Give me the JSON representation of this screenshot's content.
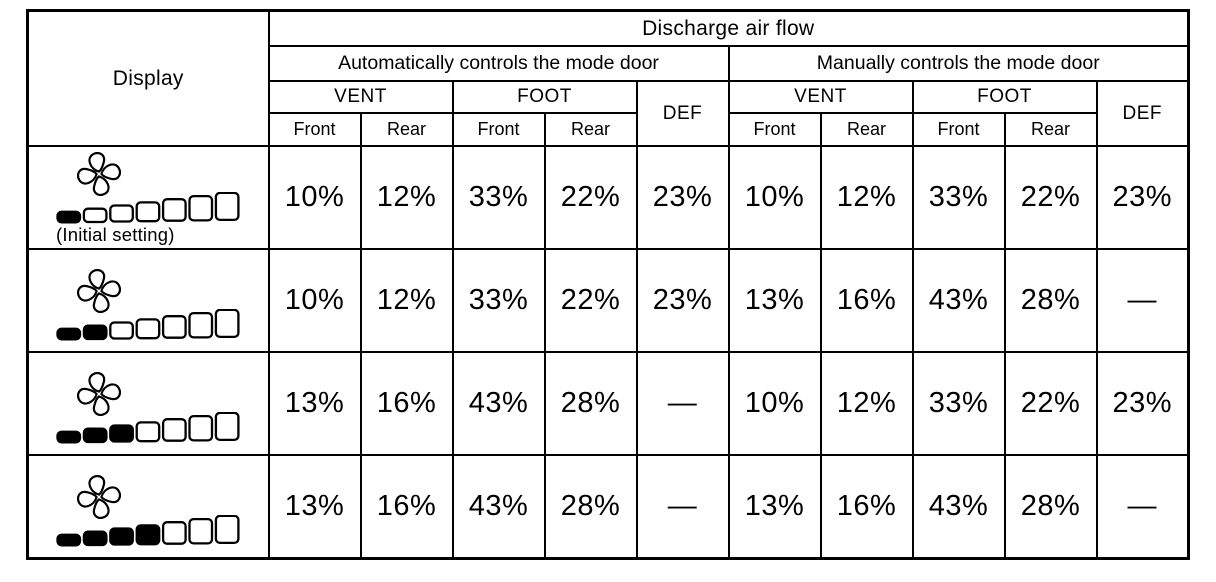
{
  "table": {
    "display_header": "Display",
    "top_header": "Discharge air flow",
    "group_headers": {
      "auto": "Automatically controls the mode door",
      "manual": "Manually controls the mode door"
    },
    "mode_headers": {
      "vent": "VENT",
      "foot": "FOOT",
      "def": "DEF"
    },
    "position_headers": {
      "front": "Front",
      "rear": "Rear"
    },
    "rows": [
      {
        "display": {
          "icon": "fan-icon",
          "segments_total": 7,
          "segments_filled": 1,
          "caption": "(Initial setting)"
        },
        "auto": {
          "vent_front": "10%",
          "vent_rear": "12%",
          "foot_front": "33%",
          "foot_rear": "22%",
          "def": "23%"
        },
        "manual": {
          "vent_front": "10%",
          "vent_rear": "12%",
          "foot_front": "33%",
          "foot_rear": "22%",
          "def": "23%"
        }
      },
      {
        "display": {
          "icon": "fan-icon",
          "segments_total": 7,
          "segments_filled": 2,
          "caption": ""
        },
        "auto": {
          "vent_front": "10%",
          "vent_rear": "12%",
          "foot_front": "33%",
          "foot_rear": "22%",
          "def": "23%"
        },
        "manual": {
          "vent_front": "13%",
          "vent_rear": "16%",
          "foot_front": "43%",
          "foot_rear": "28%",
          "def": "—"
        }
      },
      {
        "display": {
          "icon": "fan-icon",
          "segments_total": 7,
          "segments_filled": 3,
          "caption": ""
        },
        "auto": {
          "vent_front": "13%",
          "vent_rear": "16%",
          "foot_front": "43%",
          "foot_rear": "28%",
          "def": "—"
        },
        "manual": {
          "vent_front": "10%",
          "vent_rear": "12%",
          "foot_front": "33%",
          "foot_rear": "22%",
          "def": "23%"
        }
      },
      {
        "display": {
          "icon": "fan-icon",
          "segments_total": 7,
          "segments_filled": 4,
          "caption": ""
        },
        "auto": {
          "vent_front": "13%",
          "vent_rear": "16%",
          "foot_front": "43%",
          "foot_rear": "28%",
          "def": "—"
        },
        "manual": {
          "vent_front": "13%",
          "vent_rear": "16%",
          "foot_front": "43%",
          "foot_rear": "28%",
          "def": "—"
        }
      }
    ]
  },
  "colors": {
    "ink": "#000000",
    "paper": "#ffffff"
  }
}
